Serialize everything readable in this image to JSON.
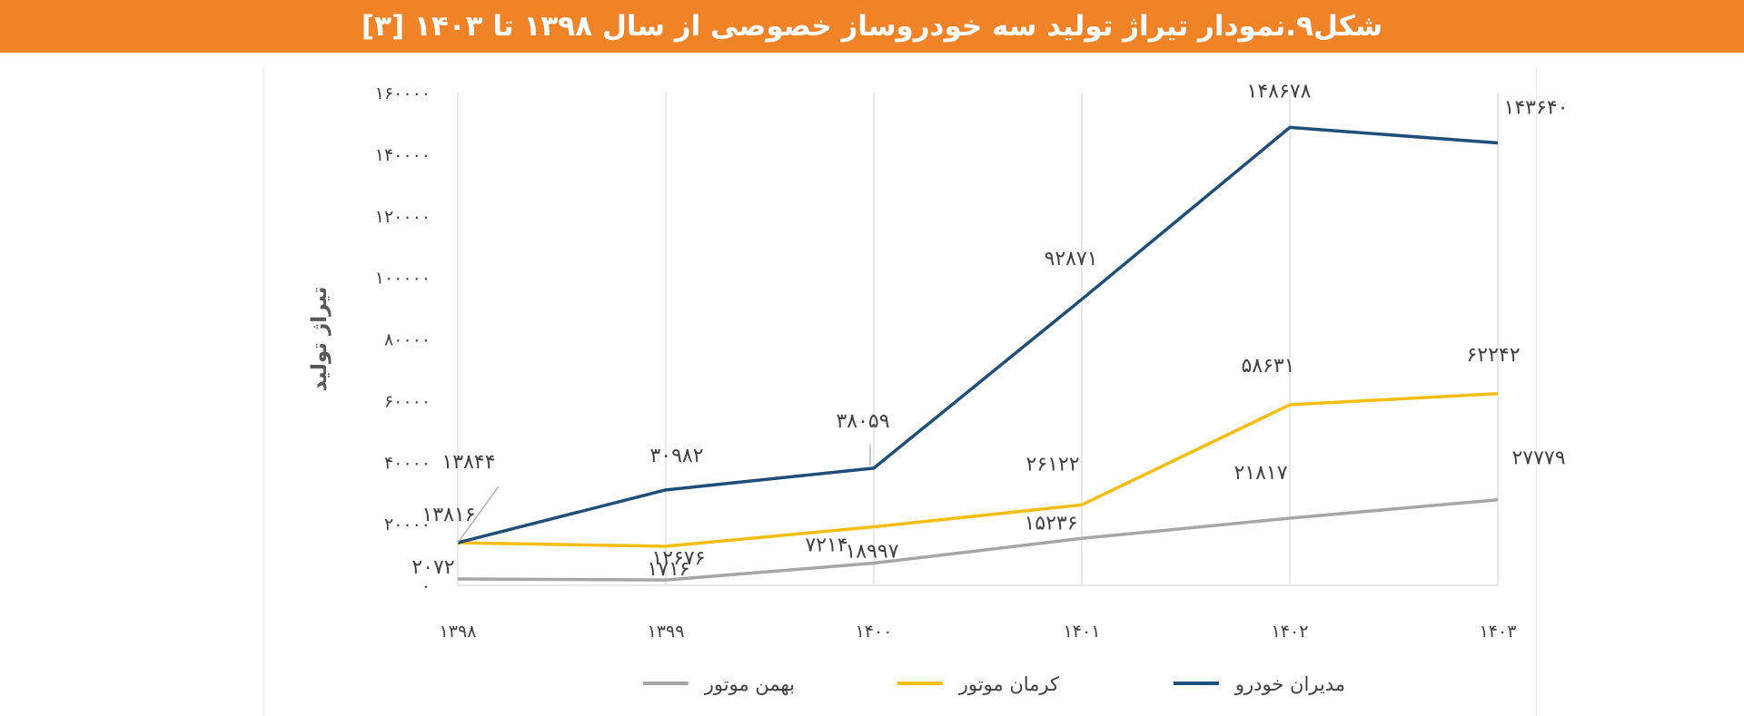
{
  "header": {
    "title": "شکل۹.نمودار تیراژ تولید سه خودروساز خصوصی از سال ۱۳۹۸ تا ۱۴۰۳ [۳]",
    "background": "#f08228"
  },
  "chart_data": {
    "type": "line",
    "title": "",
    "xlabel": "",
    "ylabel": "تیراژ تولید",
    "categories": [
      "۱۳۹۸",
      "۱۳۹۹",
      "۱۴۰۰",
      "۱۴۰۱",
      "۱۴۰۲",
      "۱۴۰۳"
    ],
    "ylim": [
      0,
      160000
    ],
    "yticks": [
      0,
      20000,
      40000,
      60000,
      80000,
      100000,
      120000,
      140000,
      160000
    ],
    "ytick_labels": [
      "۰",
      "۲۰۰۰۰",
      "۴۰۰۰۰",
      "۶۰۰۰۰",
      "۸۰۰۰۰",
      "۱۰۰۰۰۰",
      "۱۲۰۰۰۰",
      "۱۴۰۰۰۰",
      "۱۶۰۰۰۰"
    ],
    "grid": "vertical",
    "legend_position": "bottom",
    "series": [
      {
        "name": "مدیران خودرو",
        "color": "#1f4e79",
        "values": [
          13844,
          30982,
          38059,
          92871,
          148678,
          143640
        ],
        "labels": [
          "۱۳۸۴۴",
          "۳۰۹۸۲",
          "۳۸۰۵۹",
          "۹۲۸۷۱",
          "۱۴۸۶۷۸",
          "۱۴۳۶۴۰"
        ]
      },
      {
        "name": "کرمان موتور",
        "color": "#f5be12",
        "values": [
          13816,
          12676,
          18997,
          26122,
          58631,
          62242
        ],
        "labels": [
          "۱۳۸۱۶",
          "۱۲۶۷۶",
          "۱۸۹۹۷",
          "۲۶۱۲۲",
          "۵۸۶۳۱",
          "۶۲۲۴۲"
        ]
      },
      {
        "name": "بهمن موتور",
        "color": "#a6a6a6",
        "values": [
          2072,
          1716,
          7214,
          15236,
          21817,
          27779
        ],
        "labels": [
          "۲۰۷۲",
          "۱۷۱۶",
          "۷۲۱۴",
          "۱۵۲۳۶",
          "۲۱۸۱۷",
          "۲۷۷۷۹"
        ]
      }
    ]
  }
}
